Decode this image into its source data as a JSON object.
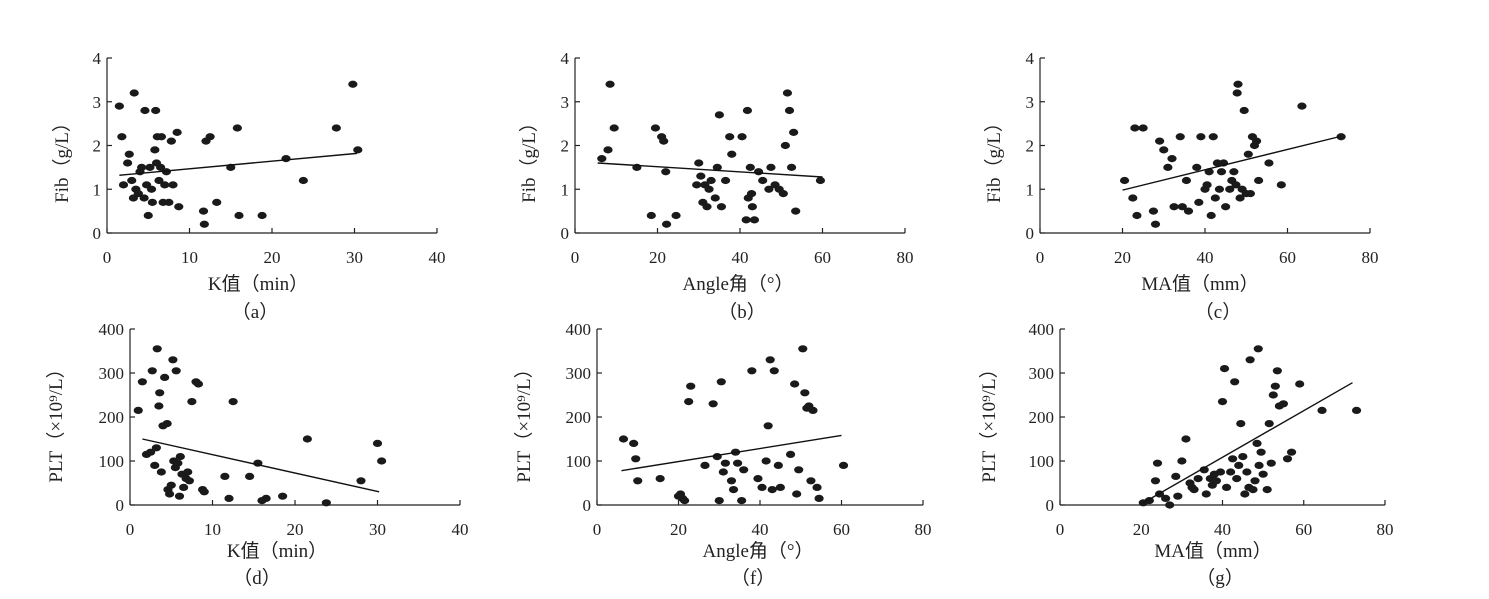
{
  "chart_data": [
    {
      "id": "a",
      "type": "scatter",
      "caption": "（a）",
      "xlabel": "K值（min）",
      "ylabel": "Fib（g/L）",
      "xlim": [
        0,
        40
      ],
      "ylim": [
        0,
        4
      ],
      "xticks": [
        0,
        10,
        20,
        30,
        40
      ],
      "yticks": [
        0,
        1,
        2,
        3,
        4
      ],
      "points": [
        [
          1.5,
          2.9
        ],
        [
          1.8,
          2.2
        ],
        [
          2.0,
          1.1
        ],
        [
          2.5,
          1.6
        ],
        [
          2.7,
          1.8
        ],
        [
          3.0,
          1.2
        ],
        [
          3.2,
          0.8
        ],
        [
          3.3,
          3.2
        ],
        [
          3.5,
          1.0
        ],
        [
          3.8,
          0.9
        ],
        [
          4.0,
          1.4
        ],
        [
          4.2,
          1.5
        ],
        [
          4.5,
          0.8
        ],
        [
          4.6,
          2.8
        ],
        [
          4.8,
          1.1
        ],
        [
          5.0,
          0.4
        ],
        [
          5.2,
          1.5
        ],
        [
          5.4,
          1.0
        ],
        [
          5.5,
          0.7
        ],
        [
          5.8,
          1.9
        ],
        [
          5.9,
          2.8
        ],
        [
          6.0,
          1.6
        ],
        [
          6.1,
          2.2
        ],
        [
          6.3,
          1.2
        ],
        [
          6.5,
          1.5
        ],
        [
          6.6,
          2.2
        ],
        [
          6.8,
          0.7
        ],
        [
          7.0,
          1.1
        ],
        [
          7.2,
          1.4
        ],
        [
          7.5,
          0.7
        ],
        [
          7.8,
          2.1
        ],
        [
          8.0,
          1.1
        ],
        [
          8.5,
          2.3
        ],
        [
          8.7,
          0.6
        ],
        [
          11.7,
          0.5
        ],
        [
          11.8,
          0.2
        ],
        [
          12.0,
          2.1
        ],
        [
          12.5,
          2.2
        ],
        [
          13.3,
          0.7
        ],
        [
          15.0,
          1.5
        ],
        [
          15.8,
          2.4
        ],
        [
          16.0,
          0.4
        ],
        [
          18.8,
          0.4
        ],
        [
          21.7,
          1.7
        ],
        [
          23.8,
          1.2
        ],
        [
          27.8,
          2.4
        ],
        [
          29.8,
          3.4
        ],
        [
          30.4,
          1.9
        ]
      ],
      "fit": [
        [
          1.5,
          1.32
        ],
        [
          30.3,
          1.82
        ]
      ]
    },
    {
      "id": "b",
      "type": "scatter",
      "caption": "（b）",
      "xlabel": "Angle角（°）",
      "ylabel": "Fib（g/L）",
      "xlim": [
        0,
        80
      ],
      "ylim": [
        0,
        4
      ],
      "xticks": [
        0,
        20,
        40,
        60,
        80
      ],
      "yticks": [
        0,
        1,
        2,
        3,
        4
      ],
      "points": [
        [
          6.5,
          1.7
        ],
        [
          8.0,
          1.9
        ],
        [
          8.5,
          3.4
        ],
        [
          9.5,
          2.4
        ],
        [
          15.0,
          1.5
        ],
        [
          18.5,
          0.4
        ],
        [
          19.5,
          2.4
        ],
        [
          21.0,
          2.2
        ],
        [
          21.5,
          2.1
        ],
        [
          22.0,
          1.4
        ],
        [
          22.2,
          0.2
        ],
        [
          24.5,
          0.4
        ],
        [
          29.5,
          1.1
        ],
        [
          30.0,
          1.6
        ],
        [
          30.5,
          1.3
        ],
        [
          31.0,
          0.7
        ],
        [
          31.5,
          1.1
        ],
        [
          32.0,
          0.6
        ],
        [
          32.5,
          1.0
        ],
        [
          33.0,
          1.2
        ],
        [
          34.0,
          0.8
        ],
        [
          34.5,
          1.5
        ],
        [
          35.0,
          2.7
        ],
        [
          35.5,
          0.6
        ],
        [
          36.5,
          1.2
        ],
        [
          37.5,
          2.2
        ],
        [
          38.0,
          1.8
        ],
        [
          40.5,
          2.2
        ],
        [
          41.5,
          0.3
        ],
        [
          41.8,
          2.8
        ],
        [
          42.0,
          0.8
        ],
        [
          42.5,
          1.5
        ],
        [
          42.8,
          0.9
        ],
        [
          43.0,
          0.6
        ],
        [
          43.5,
          0.3
        ],
        [
          44.5,
          1.4
        ],
        [
          45.5,
          1.2
        ],
        [
          47.0,
          1.0
        ],
        [
          47.5,
          1.5
        ],
        [
          48.5,
          1.1
        ],
        [
          49.5,
          1.0
        ],
        [
          50.5,
          0.9
        ],
        [
          51.0,
          2.0
        ],
        [
          51.5,
          3.2
        ],
        [
          52.0,
          2.8
        ],
        [
          52.5,
          1.5
        ],
        [
          53.0,
          2.3
        ],
        [
          53.5,
          0.5
        ],
        [
          59.5,
          1.2
        ]
      ],
      "fit": [
        [
          5.5,
          1.6
        ],
        [
          60.0,
          1.28
        ]
      ]
    },
    {
      "id": "c",
      "type": "scatter",
      "caption": "（c）",
      "xlabel": "MA值（mm）",
      "ylabel": "Fib（g/L）",
      "xlim": [
        0,
        80
      ],
      "ylim": [
        0,
        4
      ],
      "xticks": [
        0,
        20,
        40,
        60,
        80
      ],
      "yticks": [
        0,
        1,
        2,
        3,
        4
      ],
      "points": [
        [
          20.5,
          1.2
        ],
        [
          22.5,
          0.8
        ],
        [
          23.0,
          2.4
        ],
        [
          23.5,
          0.4
        ],
        [
          25.0,
          2.4
        ],
        [
          27.5,
          0.5
        ],
        [
          28.0,
          0.2
        ],
        [
          29.0,
          2.1
        ],
        [
          30.0,
          1.9
        ],
        [
          31.0,
          1.5
        ],
        [
          32.0,
          1.7
        ],
        [
          32.5,
          0.6
        ],
        [
          34.0,
          2.2
        ],
        [
          34.5,
          0.6
        ],
        [
          35.5,
          1.2
        ],
        [
          36.0,
          0.5
        ],
        [
          38.0,
          1.5
        ],
        [
          38.5,
          0.7
        ],
        [
          39.0,
          2.2
        ],
        [
          40.0,
          1.0
        ],
        [
          40.5,
          1.1
        ],
        [
          41.0,
          1.4
        ],
        [
          41.5,
          0.4
        ],
        [
          42.0,
          2.2
        ],
        [
          42.5,
          0.8
        ],
        [
          43.0,
          1.6
        ],
        [
          43.5,
          1.0
        ],
        [
          44.0,
          1.4
        ],
        [
          44.5,
          1.6
        ],
        [
          45.0,
          0.6
        ],
        [
          46.0,
          1.0
        ],
        [
          46.5,
          1.2
        ],
        [
          47.0,
          1.4
        ],
        [
          47.5,
          1.1
        ],
        [
          47.8,
          3.2
        ],
        [
          48.0,
          3.4
        ],
        [
          48.5,
          0.8
        ],
        [
          49.0,
          1.0
        ],
        [
          49.5,
          2.8
        ],
        [
          50.0,
          0.9
        ],
        [
          50.5,
          1.8
        ],
        [
          51.0,
          0.9
        ],
        [
          51.5,
          2.2
        ],
        [
          52.0,
          2.0
        ],
        [
          52.5,
          2.1
        ],
        [
          53.0,
          1.2
        ],
        [
          55.5,
          1.6
        ],
        [
          58.5,
          1.1
        ],
        [
          63.5,
          2.9
        ],
        [
          73.0,
          2.2
        ]
      ],
      "fit": [
        [
          20.0,
          0.98
        ],
        [
          72.5,
          2.2
        ]
      ]
    },
    {
      "id": "d",
      "type": "scatter",
      "caption": "（d）",
      "xlabel": "K值（min）",
      "ylabel": "PLT（×10⁹/L）",
      "xlim": [
        0,
        40
      ],
      "ylim": [
        0,
        400
      ],
      "xticks": [
        0,
        10,
        20,
        30,
        40
      ],
      "yticks": [
        0,
        100,
        200,
        300,
        400
      ],
      "points": [
        [
          1.0,
          215
        ],
        [
          1.5,
          280
        ],
        [
          2.0,
          115
        ],
        [
          2.5,
          120
        ],
        [
          2.7,
          305
        ],
        [
          3.0,
          90
        ],
        [
          3.2,
          130
        ],
        [
          3.3,
          355
        ],
        [
          3.5,
          225
        ],
        [
          3.6,
          255
        ],
        [
          3.8,
          75
        ],
        [
          4.0,
          180
        ],
        [
          4.2,
          290
        ],
        [
          4.5,
          185
        ],
        [
          4.6,
          35
        ],
        [
          4.8,
          25
        ],
        [
          5.0,
          45
        ],
        [
          5.2,
          330
        ],
        [
          5.3,
          100
        ],
        [
          5.5,
          85
        ],
        [
          5.6,
          305
        ],
        [
          5.8,
          95
        ],
        [
          6.0,
          20
        ],
        [
          6.1,
          110
        ],
        [
          6.3,
          70
        ],
        [
          6.5,
          40
        ],
        [
          6.8,
          60
        ],
        [
          7.0,
          75
        ],
        [
          7.2,
          55
        ],
        [
          7.5,
          235
        ],
        [
          8.0,
          280
        ],
        [
          8.3,
          275
        ],
        [
          8.8,
          35
        ],
        [
          9.0,
          30
        ],
        [
          11.5,
          65
        ],
        [
          12.0,
          15
        ],
        [
          12.5,
          235
        ],
        [
          14.5,
          65
        ],
        [
          15.5,
          95
        ],
        [
          16.0,
          10
        ],
        [
          16.5,
          15
        ],
        [
          18.5,
          20
        ],
        [
          21.5,
          150
        ],
        [
          23.8,
          5
        ],
        [
          28.0,
          55
        ],
        [
          30.0,
          140
        ],
        [
          30.5,
          100
        ]
      ],
      "fit": [
        [
          1.5,
          150
        ],
        [
          30.2,
          30
        ]
      ]
    },
    {
      "id": "f",
      "type": "scatter",
      "caption": "（f）",
      "xlabel": "Angle角（°）",
      "ylabel": "PLT（×10⁹/L）",
      "xlim": [
        0,
        80
      ],
      "ylim": [
        0,
        400
      ],
      "xticks": [
        0,
        20,
        40,
        60,
        80
      ],
      "yticks": [
        0,
        100,
        200,
        300,
        400
      ],
      "points": [
        [
          6.5,
          150
        ],
        [
          9.0,
          140
        ],
        [
          9.5,
          105
        ],
        [
          10.0,
          55
        ],
        [
          15.5,
          60
        ],
        [
          20.0,
          20
        ],
        [
          20.5,
          25
        ],
        [
          21.0,
          15
        ],
        [
          21.5,
          10
        ],
        [
          22.5,
          235
        ],
        [
          23.0,
          270
        ],
        [
          26.5,
          90
        ],
        [
          28.5,
          230
        ],
        [
          29.5,
          110
        ],
        [
          30.0,
          10
        ],
        [
          30.5,
          280
        ],
        [
          31.0,
          75
        ],
        [
          31.5,
          95
        ],
        [
          33.0,
          55
        ],
        [
          33.5,
          35
        ],
        [
          34.0,
          120
        ],
        [
          34.5,
          95
        ],
        [
          35.5,
          10
        ],
        [
          36.0,
          80
        ],
        [
          38.0,
          305
        ],
        [
          39.5,
          60
        ],
        [
          40.5,
          40
        ],
        [
          41.5,
          100
        ],
        [
          42.0,
          180
        ],
        [
          42.5,
          330
        ],
        [
          43.0,
          35
        ],
        [
          43.5,
          305
        ],
        [
          44.5,
          90
        ],
        [
          45.0,
          40
        ],
        [
          47.5,
          115
        ],
        [
          48.5,
          275
        ],
        [
          49.0,
          25
        ],
        [
          49.5,
          80
        ],
        [
          50.5,
          355
        ],
        [
          51.0,
          255
        ],
        [
          51.5,
          220
        ],
        [
          52.0,
          225
        ],
        [
          52.5,
          55
        ],
        [
          53.0,
          215
        ],
        [
          54.0,
          40
        ],
        [
          54.5,
          15
        ],
        [
          60.5,
          90
        ]
      ],
      "fit": [
        [
          6.0,
          78
        ],
        [
          60.0,
          158
        ]
      ]
    },
    {
      "id": "g",
      "type": "scatter",
      "caption": "（g）",
      "xlabel": "MA值（mm）",
      "ylabel": "PLT（×10⁹/L）",
      "xlim": [
        0,
        80
      ],
      "ylim": [
        0,
        400
      ],
      "xticks": [
        0,
        20,
        40,
        60,
        80
      ],
      "yticks": [
        0,
        100,
        200,
        300,
        400
      ],
      "points": [
        [
          20.5,
          5
        ],
        [
          22.0,
          10
        ],
        [
          23.5,
          55
        ],
        [
          24.0,
          95
        ],
        [
          24.5,
          25
        ],
        [
          26.0,
          15
        ],
        [
          27.0,
          0
        ],
        [
          28.5,
          65
        ],
        [
          29.0,
          20
        ],
        [
          30.0,
          100
        ],
        [
          31.0,
          150
        ],
        [
          32.0,
          50
        ],
        [
          32.5,
          40
        ],
        [
          33.0,
          35
        ],
        [
          34.0,
          60
        ],
        [
          35.5,
          80
        ],
        [
          36.0,
          25
        ],
        [
          37.0,
          60
        ],
        [
          37.5,
          45
        ],
        [
          38.0,
          70
        ],
        [
          38.5,
          55
        ],
        [
          39.5,
          75
        ],
        [
          40.0,
          235
        ],
        [
          40.5,
          310
        ],
        [
          41.0,
          40
        ],
        [
          42.0,
          75
        ],
        [
          42.5,
          105
        ],
        [
          43.0,
          280
        ],
        [
          43.5,
          60
        ],
        [
          44.0,
          90
        ],
        [
          44.5,
          185
        ],
        [
          45.0,
          110
        ],
        [
          45.5,
          25
        ],
        [
          46.0,
          75
        ],
        [
          46.5,
          40
        ],
        [
          46.8,
          330
        ],
        [
          47.5,
          35
        ],
        [
          48.0,
          55
        ],
        [
          48.5,
          140
        ],
        [
          48.8,
          355
        ],
        [
          49.0,
          90
        ],
        [
          49.5,
          120
        ],
        [
          50.0,
          70
        ],
        [
          51.0,
          35
        ],
        [
          51.5,
          185
        ],
        [
          52.0,
          95
        ],
        [
          52.5,
          250
        ],
        [
          53.0,
          270
        ],
        [
          53.5,
          305
        ],
        [
          54.0,
          225
        ],
        [
          55.0,
          230
        ],
        [
          56.0,
          105
        ],
        [
          57.0,
          120
        ],
        [
          59.0,
          275
        ],
        [
          64.5,
          215
        ],
        [
          73.0,
          215
        ]
      ],
      "fit": [
        [
          20.5,
          5
        ],
        [
          72.0,
          278
        ]
      ]
    }
  ]
}
